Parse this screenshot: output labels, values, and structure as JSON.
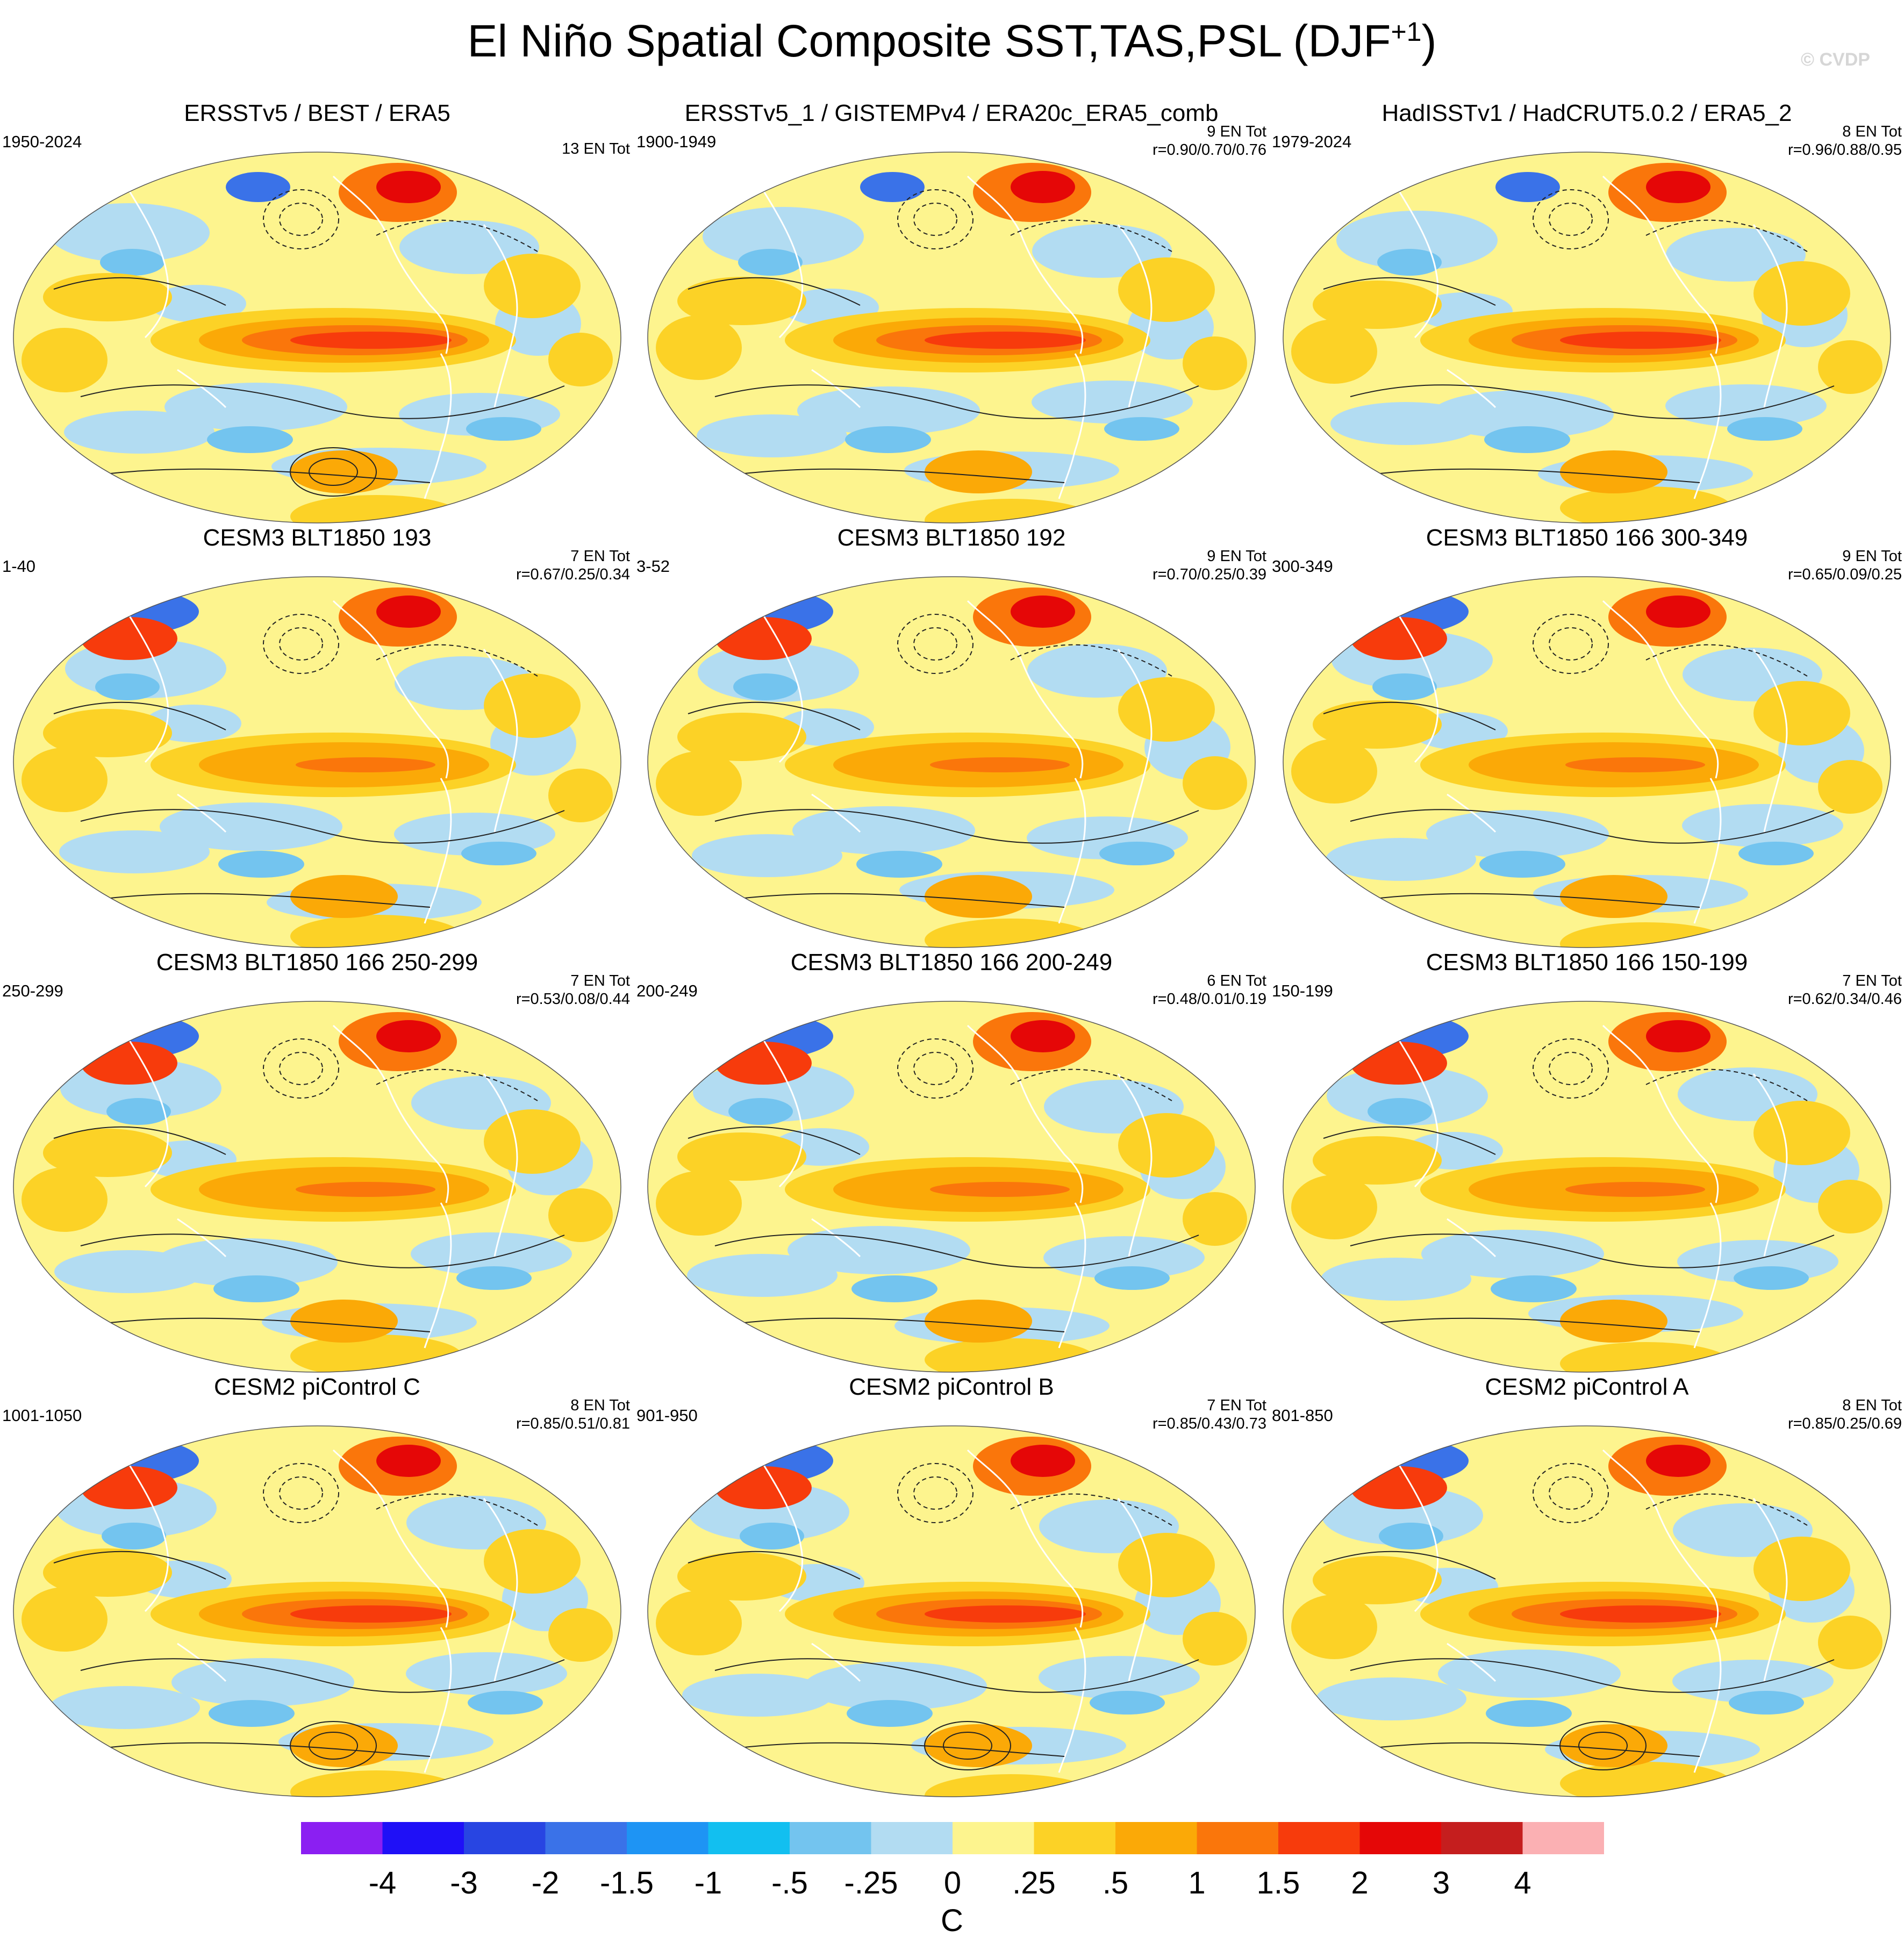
{
  "title": "El Niño Spatial Composite SST,TAS,PSL (DJF",
  "title_superscript": "+1",
  "title_close": ")",
  "watermark": "© CVDP",
  "panels": [
    {
      "title": "ERSSTv5 / BEST / ERA5",
      "years": "1950-2024",
      "ens": "13 EN Tot",
      "stats": ""
    },
    {
      "title": "ERSSTv5_1 / GISTEMPv4 / ERA20c_ERA5_comb",
      "years": "1900-1949",
      "ens": "9 EN Tot",
      "stats": "r=0.90/0.70/0.76"
    },
    {
      "title": "HadISSTv1 / HadCRUT5.0.2 / ERA5_2",
      "years": "1979-2024",
      "ens": "8 EN Tot",
      "stats": "r=0.96/0.88/0.95"
    },
    {
      "title": "CESM3 BLT1850 193",
      "years": "1-40",
      "ens": "7 EN Tot",
      "stats": "r=0.67/0.25/0.34"
    },
    {
      "title": "CESM3 BLT1850 192",
      "years": "3-52",
      "ens": "9 EN Tot",
      "stats": "r=0.70/0.25/0.39"
    },
    {
      "title": "CESM3 BLT1850 166 300-349",
      "years": "300-349",
      "ens": "9 EN Tot",
      "stats": "r=0.65/0.09/0.25"
    },
    {
      "title": "CESM3 BLT1850 166 250-299",
      "years": "250-299",
      "ens": "7 EN Tot",
      "stats": "r=0.53/0.08/0.44"
    },
    {
      "title": "CESM3 BLT1850 166 200-249",
      "years": "200-249",
      "ens": "6 EN Tot",
      "stats": "r=0.48/0.01/0.19"
    },
    {
      "title": "CESM3 BLT1850 166 150-199",
      "years": "150-199",
      "ens": "7 EN Tot",
      "stats": "r=0.62/0.34/0.46"
    },
    {
      "title": "CESM2 piControl C",
      "years": "1001-1050",
      "ens": "8 EN Tot",
      "stats": "r=0.85/0.51/0.81"
    },
    {
      "title": "CESM2 piControl B",
      "years": "901-950",
      "ens": "7 EN Tot",
      "stats": "r=0.85/0.43/0.73"
    },
    {
      "title": "CESM2 piControl A",
      "years": "801-850",
      "ens": "8 EN Tot",
      "stats": "r=0.85/0.25/0.69"
    }
  ],
  "colorbar": {
    "colors": [
      "#8b1ff2",
      "#1f10f7",
      "#2845e2",
      "#3a72e8",
      "#1e94f4",
      "#12bff0",
      "#73c4ef",
      "#b2dcf2",
      "#fdf48e",
      "#fcd226",
      "#fba907",
      "#fa760b",
      "#f73b0c",
      "#e50707",
      "#c51e1e",
      "#fbb0b3"
    ],
    "labels": [
      "-4",
      "-3",
      "-2",
      "-1.5",
      "-1",
      "-.5",
      "-.25",
      "0",
      ".25",
      ".5",
      "1",
      "1.5",
      "2",
      "3",
      "4"
    ],
    "unit": "C"
  }
}
